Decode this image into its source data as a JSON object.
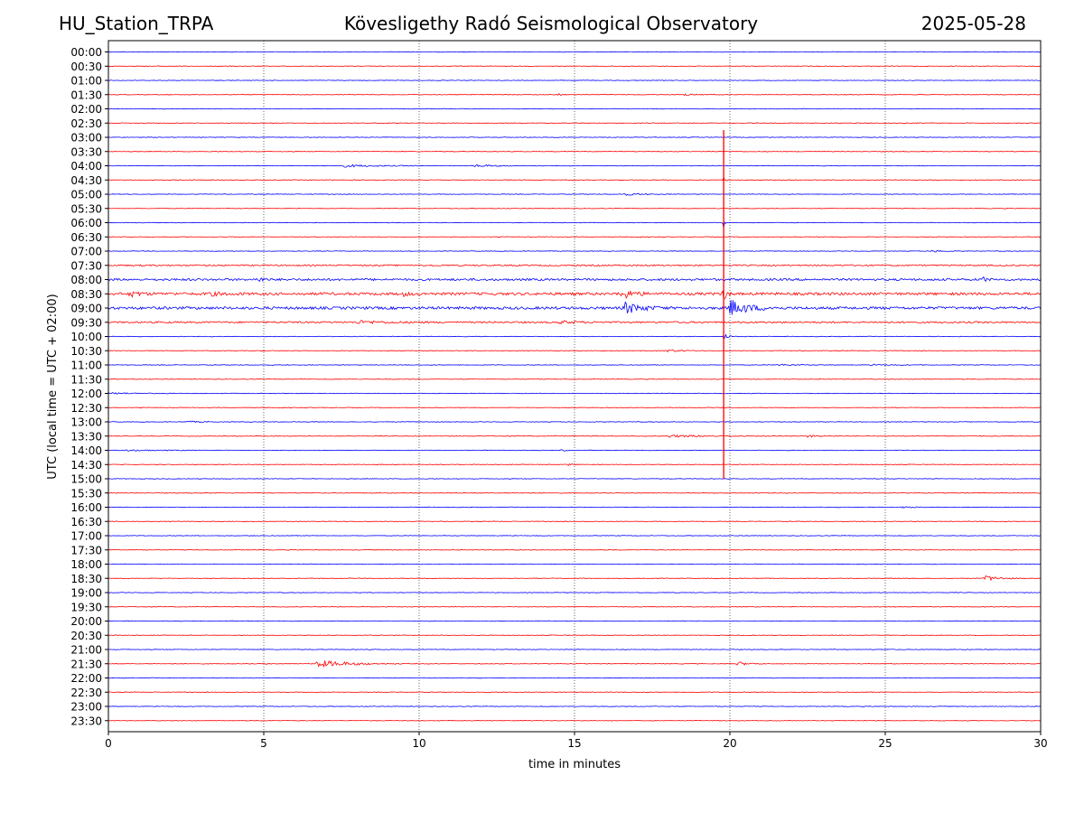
{
  "header": {
    "station": "HU_Station_TRPA",
    "title": "Kövesligethy Radó Seismological Observatory",
    "date": "2025-05-28"
  },
  "colors": {
    "even_rows": "#0000ff",
    "odd_rows": "#ff0000",
    "grid": "#000000"
  },
  "chart_data": {
    "type": "line",
    "subtype": "helicorder",
    "xlabel": "time in minutes",
    "ylabel": "UTC (local time = UTC + 02:00)",
    "xlim": [
      0,
      30
    ],
    "xticks": [
      0,
      5,
      10,
      15,
      20,
      25,
      30
    ],
    "grid": "vertical dotted at x ticks",
    "rows": [
      "00:00",
      "00:30",
      "01:00",
      "01:30",
      "02:00",
      "02:30",
      "03:00",
      "03:30",
      "04:00",
      "04:30",
      "05:00",
      "05:30",
      "06:00",
      "06:30",
      "07:00",
      "07:30",
      "08:00",
      "08:30",
      "09:00",
      "09:30",
      "10:00",
      "10:30",
      "11:00",
      "11:30",
      "12:00",
      "12:30",
      "13:00",
      "13:30",
      "14:00",
      "14:30",
      "15:00",
      "15:30",
      "16:00",
      "16:30",
      "17:00",
      "17:30",
      "18:00",
      "18:30",
      "19:00",
      "19:30",
      "20:00",
      "20:30",
      "21:00",
      "21:30",
      "22:00",
      "22:30",
      "23:00",
      "23:30"
    ],
    "row_colors": "alternating blue (even rows) / red (odd rows)",
    "base_noise_level": 0.12,
    "noisy_rows": {
      "07:30": 0.3,
      "08:00": 0.45,
      "08:30": 0.55,
      "09:00": 0.55,
      "09:30": 0.35
    },
    "events": [
      {
        "row": "01:30",
        "t_min": 14.5,
        "amp": 0.6,
        "dur": 0.3
      },
      {
        "row": "01:30",
        "t_min": 18.5,
        "amp": 0.4,
        "dur": 1.0
      },
      {
        "row": "04:00",
        "t_min": 7.6,
        "amp": 0.5,
        "dur": 3.0
      },
      {
        "row": "04:00",
        "t_min": 11.8,
        "amp": 0.5,
        "dur": 2.0
      },
      {
        "row": "04:30",
        "t_min": 19.8,
        "amp": 1.7,
        "dur": 0.15
      },
      {
        "row": "05:00",
        "t_min": 16.5,
        "amp": 0.5,
        "dur": 2.0
      },
      {
        "row": "06:00",
        "t_min": 19.8,
        "amp": 2.5,
        "dur": 0.1
      },
      {
        "row": "07:00",
        "t_min": 26.5,
        "amp": 0.4,
        "dur": 1.0
      },
      {
        "row": "08:00",
        "t_min": 4.8,
        "amp": 1.0,
        "dur": 0.5
      },
      {
        "row": "08:00",
        "t_min": 28.1,
        "amp": 1.2,
        "dur": 0.4
      },
      {
        "row": "08:30",
        "t_min": 0.7,
        "amp": 1.1,
        "dur": 0.8
      },
      {
        "row": "08:30",
        "t_min": 3.2,
        "amp": 0.7,
        "dur": 1.2
      },
      {
        "row": "08:30",
        "t_min": 9.5,
        "amp": 0.7,
        "dur": 0.6
      },
      {
        "row": "08:30",
        "t_min": 16.5,
        "amp": 2.2,
        "dur": 1.0
      },
      {
        "row": "08:30",
        "t_min": 19.8,
        "amp": 2.8,
        "dur": 0.3
      },
      {
        "row": "09:00",
        "t_min": 16.6,
        "amp": 2.5,
        "dur": 1.4
      },
      {
        "row": "09:00",
        "t_min": 20.0,
        "amp": 3.5,
        "dur": 1.6
      },
      {
        "row": "09:30",
        "t_min": 8.0,
        "amp": 0.6,
        "dur": 2.5
      },
      {
        "row": "09:30",
        "t_min": 14.5,
        "amp": 0.6,
        "dur": 1.5
      },
      {
        "row": "10:00",
        "t_min": 19.8,
        "amp": 1.5,
        "dur": 0.4
      },
      {
        "row": "10:30",
        "t_min": 18.0,
        "amp": 0.6,
        "dur": 1.2
      },
      {
        "row": "11:00",
        "t_min": 21.5,
        "amp": 0.4,
        "dur": 1.5
      },
      {
        "row": "11:00",
        "t_min": 24.5,
        "amp": 0.3,
        "dur": 2.0
      },
      {
        "row": "12:00",
        "t_min": 0.0,
        "amp": 0.4,
        "dur": 2.0
      },
      {
        "row": "13:00",
        "t_min": 2.5,
        "amp": 0.3,
        "dur": 1.5
      },
      {
        "row": "13:30",
        "t_min": 18.0,
        "amp": 0.5,
        "dur": 4.0
      },
      {
        "row": "13:30",
        "t_min": 22.5,
        "amp": 0.5,
        "dur": 1.5
      },
      {
        "row": "14:00",
        "t_min": 0.5,
        "amp": 0.3,
        "dur": 3.0
      },
      {
        "row": "14:00",
        "t_min": 14.6,
        "amp": 0.8,
        "dur": 0.3
      },
      {
        "row": "14:30",
        "t_min": 14.8,
        "amp": 0.4,
        "dur": 0.4
      },
      {
        "row": "16:00",
        "t_min": 8.0,
        "amp": 0.4,
        "dur": 0.2
      },
      {
        "row": "16:00",
        "t_min": 25.5,
        "amp": 0.4,
        "dur": 1.0
      },
      {
        "row": "18:30",
        "t_min": 28.2,
        "amp": 1.3,
        "dur": 1.2
      },
      {
        "row": "21:30",
        "t_min": 5.0,
        "amp": 0.5,
        "dur": 0.3
      },
      {
        "row": "21:30",
        "t_min": 6.7,
        "amp": 1.6,
        "dur": 3.0
      },
      {
        "row": "21:30",
        "t_min": 20.2,
        "amp": 1.0,
        "dur": 1.0
      }
    ],
    "spike": {
      "t_min": 19.8,
      "from_row": "03:00",
      "to_row": "15:00"
    }
  }
}
